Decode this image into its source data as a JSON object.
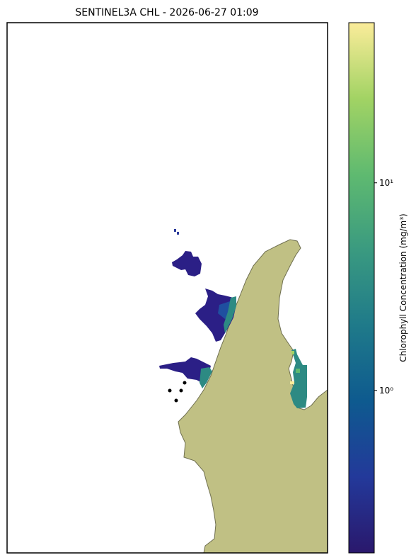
{
  "chart_data": {
    "type": "map",
    "title": "SENTINEL3A CHL - 2026-06-27 01:09",
    "colorbar": {
      "label": "Chlorophyll Concentration (mg/m³)",
      "log": true,
      "ylim": [
        0.165,
        59
      ],
      "yticks": [
        {
          "value": 1,
          "label": "10⁰"
        },
        {
          "value": 10,
          "label": "10¹"
        }
      ],
      "colors": [
        "#2a186c",
        "#23399a",
        "#0e5a8f",
        "#1f7a8a",
        "#3a9a80",
        "#5fba70",
        "#a2d364",
        "#fbec9a"
      ]
    }
  }
}
